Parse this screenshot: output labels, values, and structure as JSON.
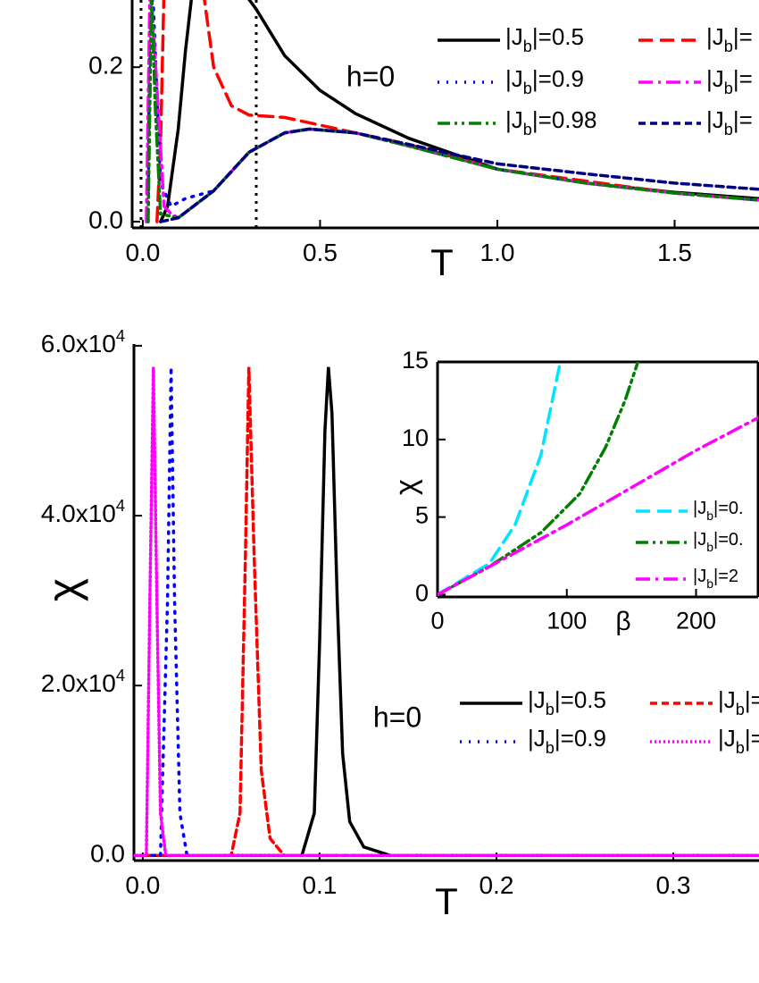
{
  "chart_data": [
    {
      "type": "line",
      "xlabel": "T",
      "annotation": "h=0",
      "xlim": [
        -0.03,
        1.738
      ],
      "ylim": [
        -0.008,
        0.287
      ],
      "xticks": [
        {
          "value": 0,
          "label": "0.0"
        },
        0.5,
        {
          "value": 1,
          "label": "1.0"
        },
        1.5
      ],
      "yticks": [
        {
          "value": 0,
          "label": "0.0"
        },
        0.2
      ],
      "vlines": [
        -0.005,
        0.32
      ],
      "series": [
        {
          "name": "|Jb|=0.5",
          "color": "#000000",
          "dash": "solid",
          "x": [
            0.05,
            0.07,
            0.1,
            0.12,
            0.14,
            null,
            0.28,
            0.32,
            0.4,
            0.5,
            0.6,
            0.75,
            1.0,
            1.25,
            1.5,
            1.738
          ],
          "values": [
            0,
            0.02,
            0.12,
            0.22,
            0.3,
            null,
            0.3,
            0.275,
            0.215,
            0.17,
            0.14,
            0.108,
            0.068,
            0.05,
            0.038,
            0.03
          ]
        },
        {
          "name": "|Jb|=",
          "color": "#ff0000",
          "dash": "dash",
          "x": [
            0.04,
            0.05,
            0.06,
            null,
            0.17,
            0.2,
            0.25,
            0.3,
            0.4,
            0.5,
            0.6,
            0.75,
            1.0,
            1.5,
            1.738
          ],
          "values": [
            0,
            0.1,
            0.3,
            null,
            0.3,
            0.2,
            0.15,
            0.138,
            0.135,
            0.125,
            0.115,
            0.1,
            0.068,
            0.037,
            0.028
          ]
        },
        {
          "name": "|Jb|=0.9",
          "color": "#0000ff",
          "dash": "dot",
          "x": [
            0.015,
            0.02,
            0.03,
            0.05,
            0.08,
            0.12,
            0.2,
            0.3,
            0.4,
            0.47,
            0.6,
            0.75,
            1.0,
            1.25,
            1.5,
            1.738
          ],
          "values": [
            0,
            0.3,
            0.28,
            0.05,
            0.02,
            0.03,
            0.04,
            0.09,
            0.115,
            0.12,
            0.115,
            0.098,
            0.068,
            0.05,
            0.037,
            0.028
          ]
        },
        {
          "name": "|Jb|=",
          "color": "#ff00ff",
          "dash": "dashdot",
          "x": [
            0.01,
            0.02,
            0.03,
            0.06,
            0.08,
            0.1,
            0.2,
            0.3,
            0.4,
            0.47,
            0.6,
            0.75,
            1.0,
            1.25,
            1.5,
            1.738
          ],
          "values": [
            0,
            0.3,
            0.25,
            0.02,
            0.01,
            0.005,
            0.04,
            0.09,
            0.115,
            0.12,
            0.115,
            0.098,
            0.068,
            0.05,
            0.037,
            0.028
          ]
        },
        {
          "name": "|Jb|=0.98",
          "color": "#007f00",
          "dash": "dashdotdot",
          "x": [
            0.015,
            0.025,
            0.035,
            0.05,
            0.1,
            0.2,
            0.3,
            0.4,
            0.47,
            0.6,
            0.75,
            1.0,
            1.25,
            1.5,
            1.738
          ],
          "values": [
            0,
            0.3,
            0.15,
            0.01,
            0.005,
            0.04,
            0.09,
            0.115,
            0.12,
            0.115,
            0.098,
            0.068,
            0.05,
            0.037,
            0.028
          ]
        },
        {
          "name": "|Jb|=",
          "color": "#000080",
          "dash": "shortdash",
          "x": [
            0.05,
            0.1,
            0.2,
            0.3,
            0.4,
            0.47,
            0.6,
            0.75,
            1.0,
            1.25,
            1.5,
            1.738
          ],
          "values": [
            0,
            0.005,
            0.04,
            0.09,
            0.115,
            0.12,
            0.115,
            0.1,
            0.075,
            0.062,
            0.05,
            0.042
          ]
        }
      ]
    },
    {
      "type": "line",
      "xlabel": "T",
      "ylabel": "χ",
      "annotation": "h=0",
      "xlim": [
        -0.005,
        0.3485
      ],
      "ylim": [
        -600,
        60200
      ],
      "xticks": [
        {
          "value": 0,
          "label": "0.0"
        },
        0.1,
        0.2,
        0.3
      ],
      "yticks": [
        {
          "value": 0,
          "label": "0.0"
        },
        {
          "value": 20000,
          "label": "2.0x104"
        },
        {
          "value": 40000,
          "label": "4.0x104"
        },
        {
          "value": 60000,
          "label": "6.0x104"
        }
      ],
      "series": [
        {
          "name": "|Jb|=0.5",
          "color": "#000000",
          "dash": "solid",
          "x": [
            -0.005,
            0.09,
            0.097,
            0.1,
            0.103,
            0.105,
            0.107,
            0.11,
            0.113,
            0.117,
            0.125,
            0.14,
            0.3485
          ],
          "values": [
            0,
            0,
            5000,
            25000,
            50000,
            57500,
            52000,
            30000,
            12000,
            4000,
            1000,
            0,
            0
          ]
        },
        {
          "name": "|Jb|=",
          "color": "#ff0000",
          "dash": "shortdash",
          "x": [
            -0.005,
            0.05,
            0.055,
            0.058,
            0.06,
            0.063,
            0.067,
            0.072,
            0.08,
            0.3485
          ],
          "values": [
            0,
            0,
            5000,
            35000,
            57500,
            35000,
            10000,
            2000,
            0,
            0
          ]
        },
        {
          "name": "|Jb|=0.9",
          "color": "#0000ff",
          "dash": "dot",
          "x": [
            -0.005,
            0.01,
            0.014,
            0.016,
            0.018,
            0.021,
            0.025,
            0.3485
          ],
          "values": [
            0,
            0,
            30000,
            57500,
            30000,
            5000,
            0,
            0
          ]
        },
        {
          "name": "|Jb|=",
          "color": "#ff00ff",
          "dash": "finedot",
          "x": [
            -0.005,
            0.002,
            0.004,
            0.006,
            0.008,
            0.01,
            0.013,
            0.3485
          ],
          "values": [
            0,
            0,
            30000,
            57500,
            30000,
            5000,
            0,
            0
          ]
        }
      ]
    },
    {
      "type": "line",
      "xlabel": "β",
      "ylabel": "χ",
      "inset": true,
      "xlim": [
        0,
        248
      ],
      "ylim": [
        -0.15,
        15
      ],
      "xticks": [
        0,
        100,
        200
      ],
      "yticks": [
        0,
        5,
        10,
        15
      ],
      "series": [
        {
          "name": "|Jb|=0.",
          "color": "#00e5ff",
          "dash": "dash",
          "x": [
            0,
            40,
            60,
            80,
            95
          ],
          "values": [
            0,
            2,
            4.5,
            9,
            15
          ]
        },
        {
          "name": "|Jb|=0.",
          "color": "#007f00",
          "dash": "dashdotdot",
          "x": [
            0,
            40,
            80,
            110,
            130,
            145,
            155
          ],
          "values": [
            0,
            1.8,
            4,
            6.5,
            9.5,
            12.5,
            15
          ]
        },
        {
          "name": "|Jb|=2",
          "color": "#ff00ff",
          "dash": "dashdot",
          "x": [
            0,
            100,
            200,
            248
          ],
          "values": [
            0,
            4.5,
            9.3,
            11.4
          ]
        }
      ]
    }
  ]
}
